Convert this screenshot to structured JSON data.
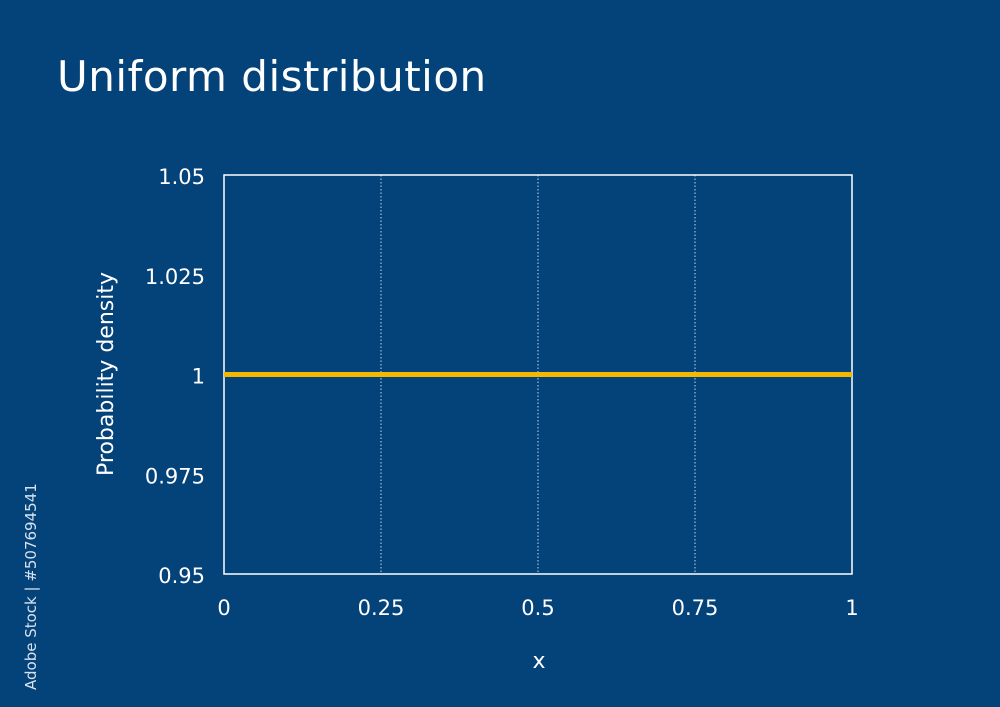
{
  "chart_data": {
    "type": "line",
    "title": "Uniform distribution",
    "xlabel": "x",
    "ylabel": "Probability density",
    "xlim": [
      0,
      1
    ],
    "ylim": [
      0.95,
      1.05
    ],
    "xticks": [
      "0",
      "0.25",
      "0.5",
      "0.75",
      "1"
    ],
    "xtick_values": [
      0,
      0.25,
      0.5,
      0.75,
      1
    ],
    "yticks": [
      "1.05",
      "1.025",
      "1",
      "0.975",
      "0.95"
    ],
    "ytick_values": [
      1.05,
      1.025,
      1,
      0.975,
      0.95
    ],
    "grid": "vertical dotted",
    "series": [
      {
        "x": [
          0,
          1
        ],
        "y": [
          1,
          1
        ],
        "color": "#f5b800"
      }
    ]
  },
  "watermark": "Adobe Stock | #507694541",
  "colors": {
    "background": "#04427a",
    "line": "#f5b800",
    "axes": "#ffffff"
  }
}
